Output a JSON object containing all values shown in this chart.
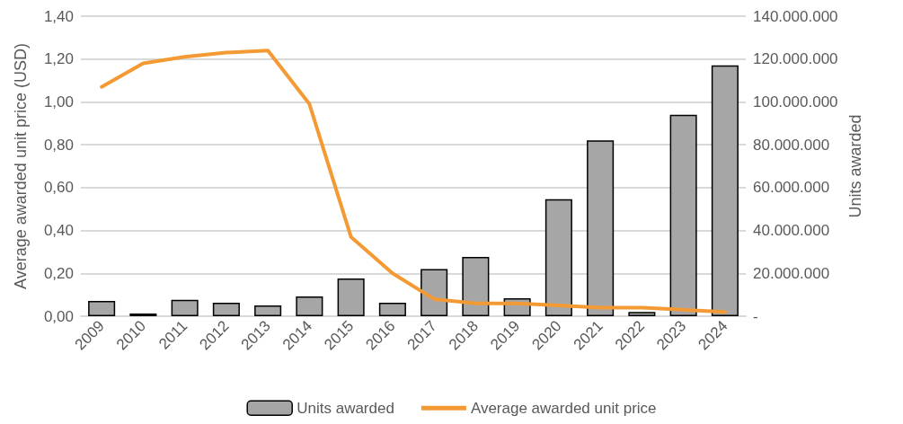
{
  "chart_data": {
    "type": "bar",
    "categories": [
      "2009",
      "2010",
      "2011",
      "2012",
      "2013",
      "2014",
      "2015",
      "2016",
      "2017",
      "2018",
      "2019",
      "2020",
      "2021",
      "2022",
      "2023",
      "2024"
    ],
    "ylabel": "Average awarded unit price (USD)",
    "y2label": "Units awarded",
    "series": [
      {
        "name": "Units awarded",
        "axis": "y2",
        "color": "#a6a6a6",
        "values": [
          7100000,
          1300000,
          7600000,
          6300000,
          5000000,
          9200000,
          17600000,
          6300000,
          22000000,
          27700000,
          8400000,
          54600000,
          82000000,
          2000000,
          94000000,
          117000000
        ]
      },
      {
        "name": "Average awarded unit price",
        "type": "line",
        "axis": "y",
        "color": "#f39a35",
        "values": [
          1.07,
          1.18,
          1.21,
          1.23,
          1.24,
          0.99,
          0.37,
          0.2,
          0.08,
          0.06,
          0.06,
          0.05,
          0.04,
          0.04,
          0.03,
          0.02
        ]
      }
    ],
    "ylim": [
      0,
      1.4
    ],
    "yticks": [
      {
        "value": 0,
        "label": "0,00"
      },
      {
        "value": 0.2,
        "label": "0,20"
      },
      {
        "value": 0.4,
        "label": "0,40"
      },
      {
        "value": 0.6,
        "label": "0,60"
      },
      {
        "value": 0.8,
        "label": "0,80"
      },
      {
        "value": 1,
        "label": "1,00"
      },
      {
        "value": 1.2,
        "label": "1,20"
      },
      {
        "value": 1.4,
        "label": "1,40"
      }
    ],
    "y2lim": [
      0,
      140000000
    ],
    "y2ticks": [
      {
        "value": 0,
        "label": "-"
      },
      {
        "value": 20000000,
        "label": "20.000.000"
      },
      {
        "value": 40000000,
        "label": "40.000.000"
      },
      {
        "value": 60000000,
        "label": "60.000.000"
      },
      {
        "value": 80000000,
        "label": "80.000.000"
      },
      {
        "value": 100000000,
        "label": "100.000.000"
      },
      {
        "value": 120000000,
        "label": "120.000.000"
      },
      {
        "value": 140000000,
        "label": "140.000.000"
      }
    ],
    "grid": "y",
    "legend": "bottom",
    "marker": "none",
    "line_style": "solid"
  }
}
